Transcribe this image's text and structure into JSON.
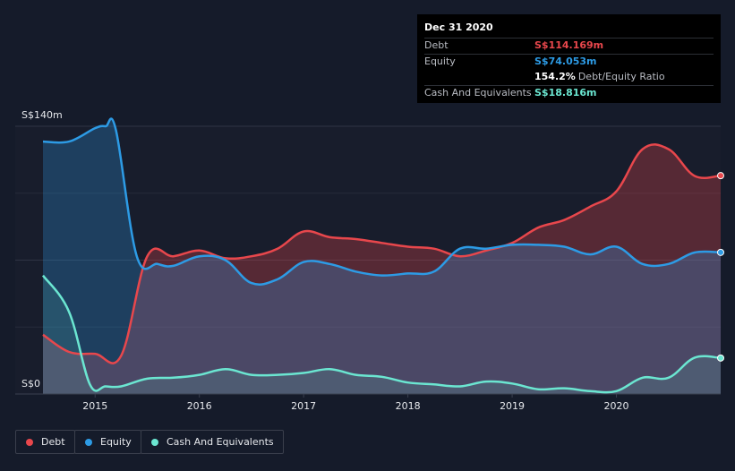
{
  "tooltip": {
    "date": "Dec 31 2020",
    "rows": [
      {
        "label": "Debt",
        "value": "S$114.169m",
        "color": "#e8474c"
      },
      {
        "label": "Equity",
        "value": "S$74.053m",
        "color": "#2d9be5"
      },
      {
        "label": "",
        "value": "154.2%",
        "extra": "Debt/Equity Ratio",
        "color": "#ffffff"
      },
      {
        "label": "Cash And Equivalents",
        "value": "S$18.816m",
        "color": "#6be6d1"
      }
    ]
  },
  "legend": [
    {
      "label": "Debt",
      "color": "#e8474c"
    },
    {
      "label": "Equity",
      "color": "#2d9be5"
    },
    {
      "label": "Cash And Equivalents",
      "color": "#6be6d1"
    }
  ],
  "chart_data": {
    "type": "area",
    "title": "",
    "xlabel": "",
    "ylabel": "",
    "y_tick_labels": [
      "S$0",
      "S$140m"
    ],
    "x_tick_labels": [
      "2015",
      "2016",
      "2017",
      "2018",
      "2019",
      "2020"
    ],
    "x_tick_values": [
      2015,
      2016,
      2017,
      2018,
      2019,
      2020
    ],
    "xlim": [
      2014.5,
      2021.0
    ],
    "ylim": [
      0,
      140
    ],
    "grid": true,
    "legend_position": "bottom-left",
    "series": [
      {
        "name": "Debt",
        "color": "#e8474c",
        "points": [
          [
            2014.5,
            31
          ],
          [
            2014.75,
            22
          ],
          [
            2015.0,
            21
          ],
          [
            2015.25,
            20
          ],
          [
            2015.5,
            72
          ],
          [
            2015.75,
            72
          ],
          [
            2016.0,
            75
          ],
          [
            2016.25,
            71
          ],
          [
            2016.5,
            72
          ],
          [
            2016.75,
            76
          ],
          [
            2017.0,
            85
          ],
          [
            2017.25,
            82
          ],
          [
            2017.5,
            81
          ],
          [
            2017.75,
            79
          ],
          [
            2018.0,
            77
          ],
          [
            2018.25,
            76
          ],
          [
            2018.5,
            72
          ],
          [
            2018.75,
            75
          ],
          [
            2019.0,
            79
          ],
          [
            2019.25,
            87
          ],
          [
            2019.5,
            91
          ],
          [
            2019.75,
            98
          ],
          [
            2020.0,
            106
          ],
          [
            2020.25,
            128
          ],
          [
            2020.5,
            128
          ],
          [
            2020.75,
            114
          ],
          [
            2021.0,
            114.169
          ]
        ]
      },
      {
        "name": "Equity",
        "color": "#2d9be5",
        "points": [
          [
            2014.5,
            132
          ],
          [
            2014.75,
            132
          ],
          [
            2015.0,
            139
          ],
          [
            2015.1,
            140
          ],
          [
            2015.2,
            138
          ],
          [
            2015.4,
            72
          ],
          [
            2015.6,
            68
          ],
          [
            2015.75,
            67
          ],
          [
            2016.0,
            72
          ],
          [
            2016.25,
            70
          ],
          [
            2016.5,
            58
          ],
          [
            2016.75,
            60
          ],
          [
            2017.0,
            69
          ],
          [
            2017.25,
            68
          ],
          [
            2017.5,
            64
          ],
          [
            2017.75,
            62
          ],
          [
            2018.0,
            63
          ],
          [
            2018.25,
            64
          ],
          [
            2018.5,
            76
          ],
          [
            2018.75,
            76
          ],
          [
            2019.0,
            78
          ],
          [
            2019.25,
            78
          ],
          [
            2019.5,
            77
          ],
          [
            2019.75,
            73
          ],
          [
            2020.0,
            77
          ],
          [
            2020.25,
            68
          ],
          [
            2020.5,
            68
          ],
          [
            2020.75,
            74
          ],
          [
            2021.0,
            74.053
          ]
        ]
      },
      {
        "name": "Cash And Equivalents",
        "color": "#6be6d1",
        "points": [
          [
            2014.5,
            62
          ],
          [
            2014.75,
            43
          ],
          [
            2014.95,
            5
          ],
          [
            2015.1,
            4
          ],
          [
            2015.25,
            4
          ],
          [
            2015.5,
            8
          ],
          [
            2015.75,
            8.5
          ],
          [
            2016.0,
            10
          ],
          [
            2016.25,
            13
          ],
          [
            2016.5,
            10
          ],
          [
            2016.75,
            10
          ],
          [
            2017.0,
            11
          ],
          [
            2017.25,
            13
          ],
          [
            2017.5,
            10
          ],
          [
            2017.75,
            9
          ],
          [
            2018.0,
            6
          ],
          [
            2018.25,
            5
          ],
          [
            2018.5,
            4
          ],
          [
            2018.75,
            6.5
          ],
          [
            2019.0,
            5.5
          ],
          [
            2019.25,
            2.5
          ],
          [
            2019.5,
            3
          ],
          [
            2019.75,
            1.5
          ],
          [
            2020.0,
            1.5
          ],
          [
            2020.25,
            8.5
          ],
          [
            2020.5,
            8.5
          ],
          [
            2020.75,
            19
          ],
          [
            2021.0,
            18.816
          ]
        ]
      }
    ]
  }
}
